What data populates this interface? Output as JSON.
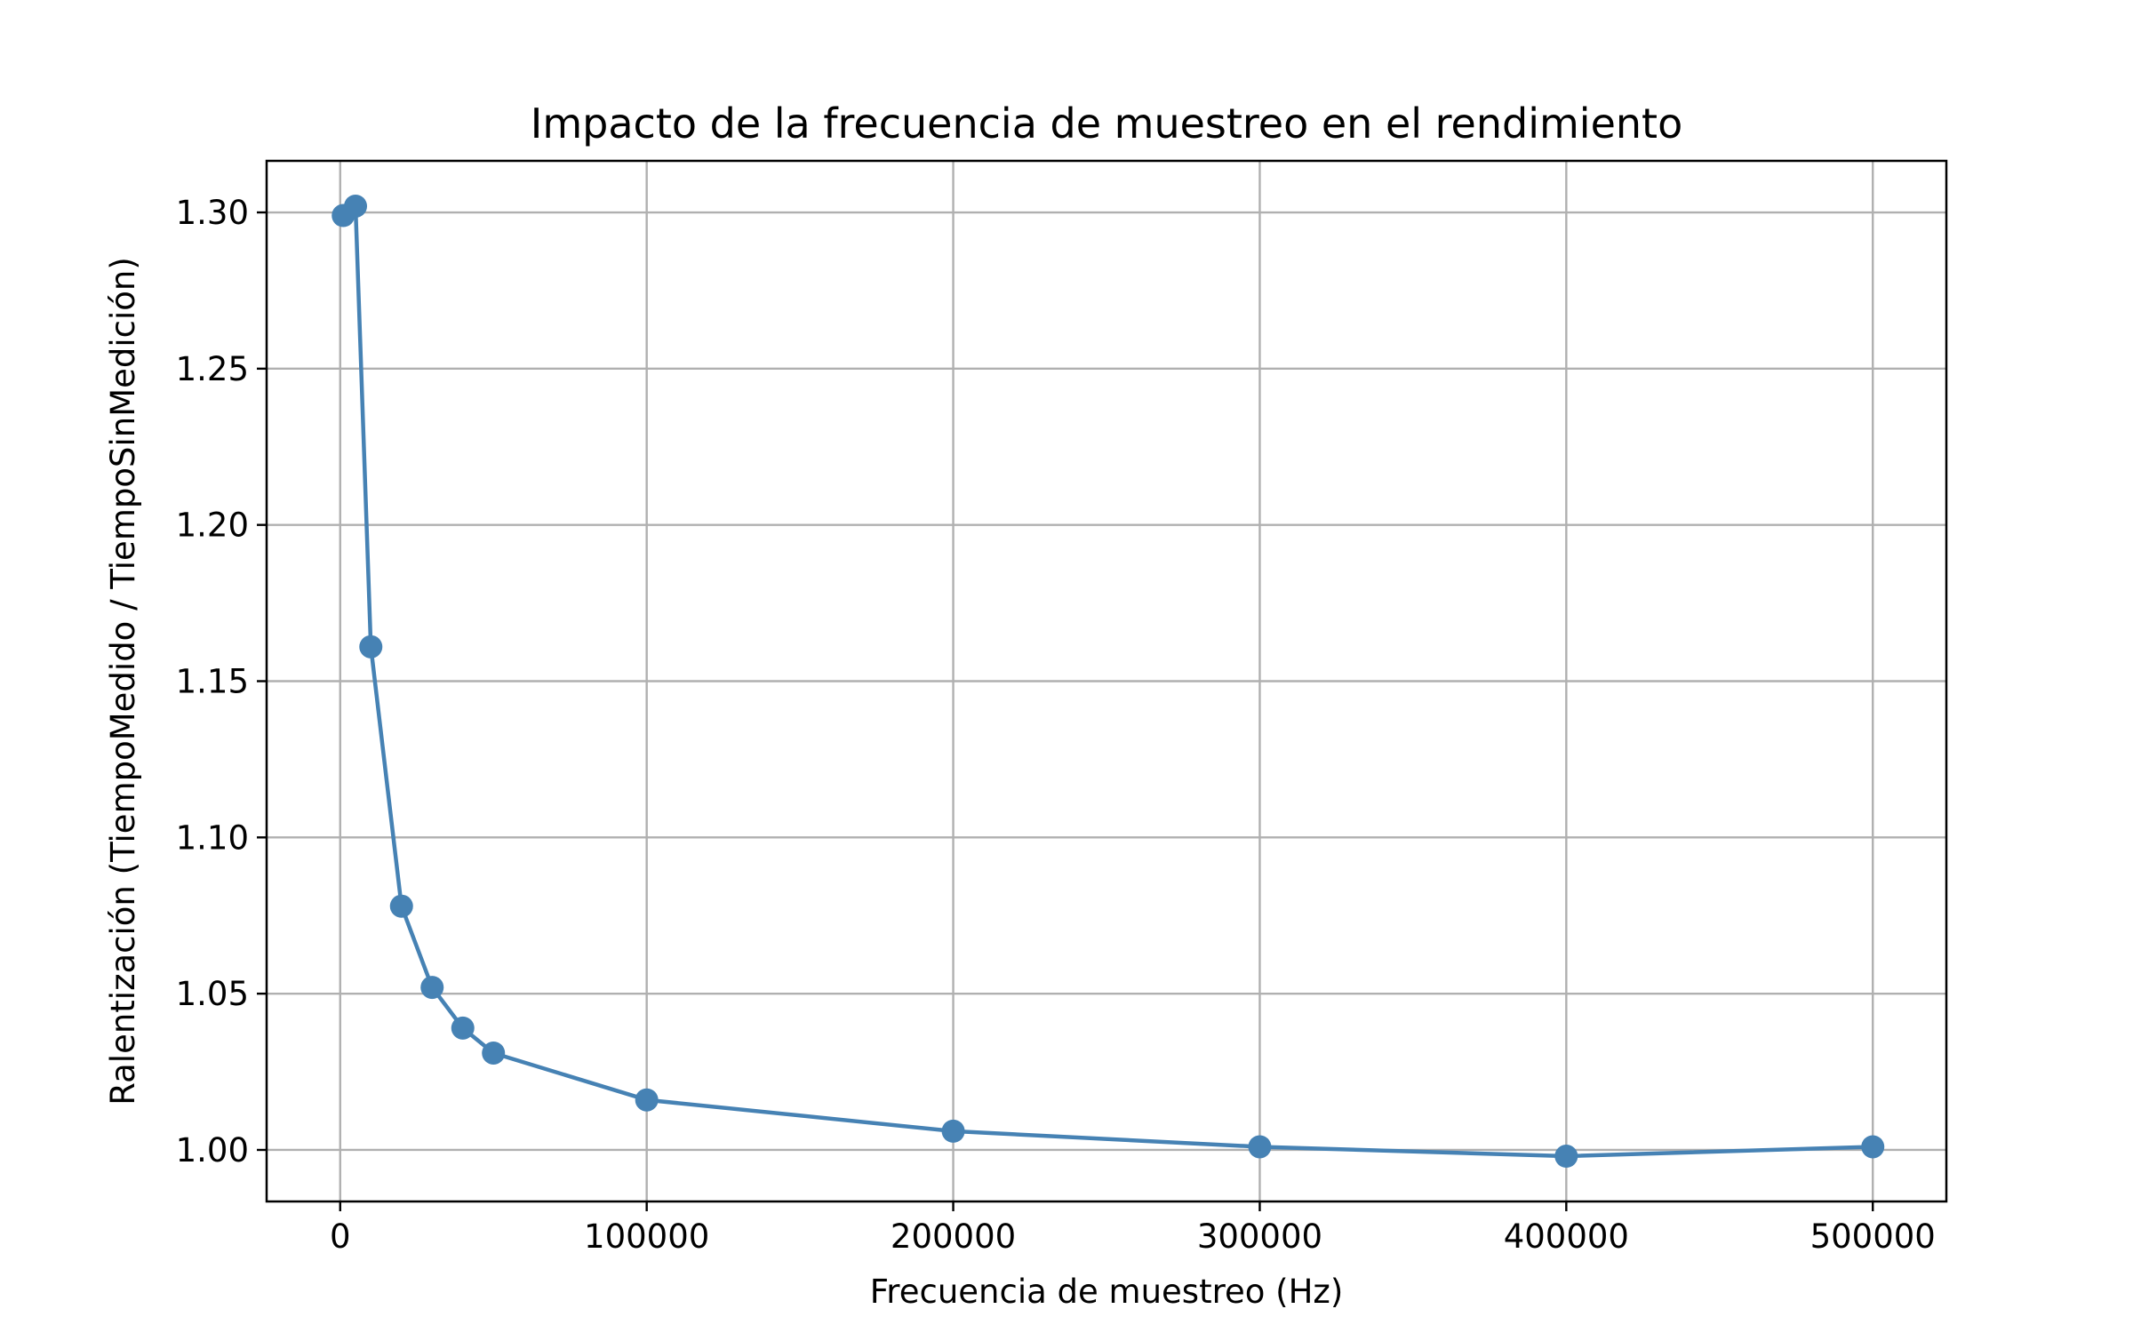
{
  "chart_data": {
    "type": "line",
    "title": "Impacto de la frecuencia de muestreo en el rendimiento",
    "xlabel": "Frecuencia de muestreo (Hz)",
    "ylabel": "Ralentización (TiempoMedido / TiempoSinMedición)",
    "xlim": [
      -24000,
      524000
    ],
    "ylim": [
      0.9835,
      1.3165
    ],
    "xticks": [
      0,
      100000,
      200000,
      300000,
      400000,
      500000
    ],
    "xtick_labels": [
      "0",
      "100000",
      "200000",
      "300000",
      "400000",
      "500000"
    ],
    "yticks": [
      1.0,
      1.05,
      1.1,
      1.15,
      1.2,
      1.25,
      1.3
    ],
    "ytick_labels": [
      "1.00",
      "1.05",
      "1.10",
      "1.15",
      "1.20",
      "1.25",
      "1.30"
    ],
    "grid": true,
    "series": [
      {
        "color": "#4682b4",
        "marker": "circle",
        "x": [
          1000,
          5000,
          10000,
          20000,
          30000,
          40000,
          50000,
          100000,
          200000,
          300000,
          400000,
          500000
        ],
        "y": [
          1.299,
          1.302,
          1.161,
          1.078,
          1.052,
          1.039,
          1.031,
          1.016,
          1.006,
          1.001,
          0.998,
          1.001
        ]
      }
    ]
  }
}
